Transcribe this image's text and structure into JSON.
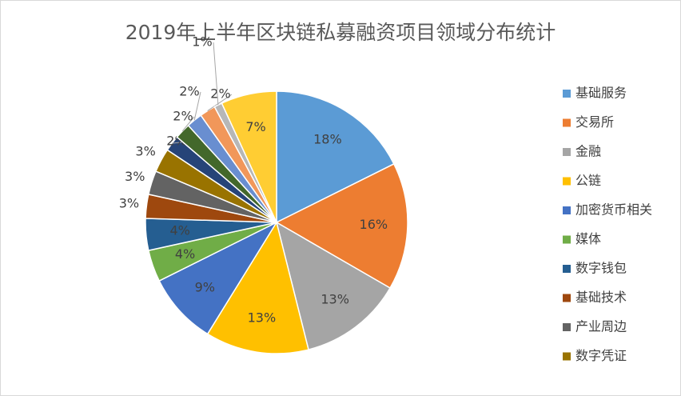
{
  "chart_data": {
    "type": "pie",
    "title": "2019年上半年区块链私募融资项目领域分布统计",
    "categories": [
      "基础服务",
      "交易所",
      "金融",
      "公链",
      "加密货币相关",
      "媒体",
      "数字钱包",
      "基础技术",
      "产业周边",
      "数字凭证",
      null,
      null,
      null,
      null,
      null,
      null
    ],
    "values": [
      18,
      16,
      13,
      13,
      9,
      4,
      4,
      3,
      3,
      3,
      2,
      2,
      2,
      2,
      1,
      7
    ],
    "value_labels": [
      "18%",
      "16%",
      "13%",
      "13%",
      "9%",
      "4%",
      "4%",
      "3%",
      "3%",
      "3%",
      "2%",
      "2%",
      "2%",
      "2%",
      "1%",
      "7%"
    ],
    "colors": [
      "#5B9BD5",
      "#ED7D31",
      "#A5A5A5",
      "#FFC000",
      "#4472C4",
      "#70AD47",
      "#255E91",
      "#9E480E",
      "#636363",
      "#997300",
      "#264478",
      "#43682B",
      "#698ED0",
      "#F1975A",
      "#B7B7B7",
      "#FFCD33"
    ],
    "legend": "right"
  }
}
